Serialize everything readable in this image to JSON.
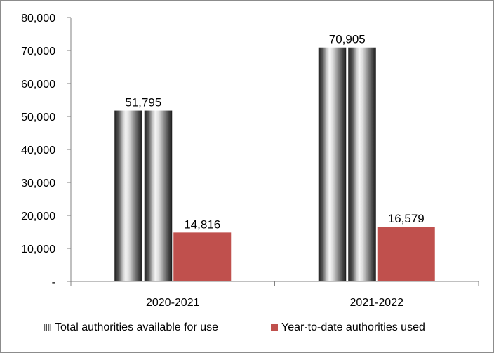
{
  "chart_data": {
    "type": "bar",
    "categories": [
      "2020-2021",
      "2021-2022"
    ],
    "series": [
      {
        "name": "Total authorities available for use",
        "values": [
          51795,
          70905
        ],
        "value_labels": [
          "51,795",
          "70,905"
        ],
        "color": "#9a9a9a",
        "style": "cylinder-gradient"
      },
      {
        "name": "Year-to-date authorities used",
        "values": [
          14816,
          16579
        ],
        "value_labels": [
          "14,816",
          "16,579"
        ],
        "color": "#c0504d",
        "style": "solid"
      }
    ],
    "ylim": [
      0,
      80000
    ],
    "yticks": [
      0,
      10000,
      20000,
      30000,
      40000,
      50000,
      60000,
      70000,
      80000
    ],
    "ytick_labels": [
      "-",
      "10,000",
      "20,000",
      "30,000",
      "40,000",
      "50,000",
      "60,000",
      "70,000",
      "80,000"
    ],
    "grid": false,
    "legend": "bottom"
  }
}
